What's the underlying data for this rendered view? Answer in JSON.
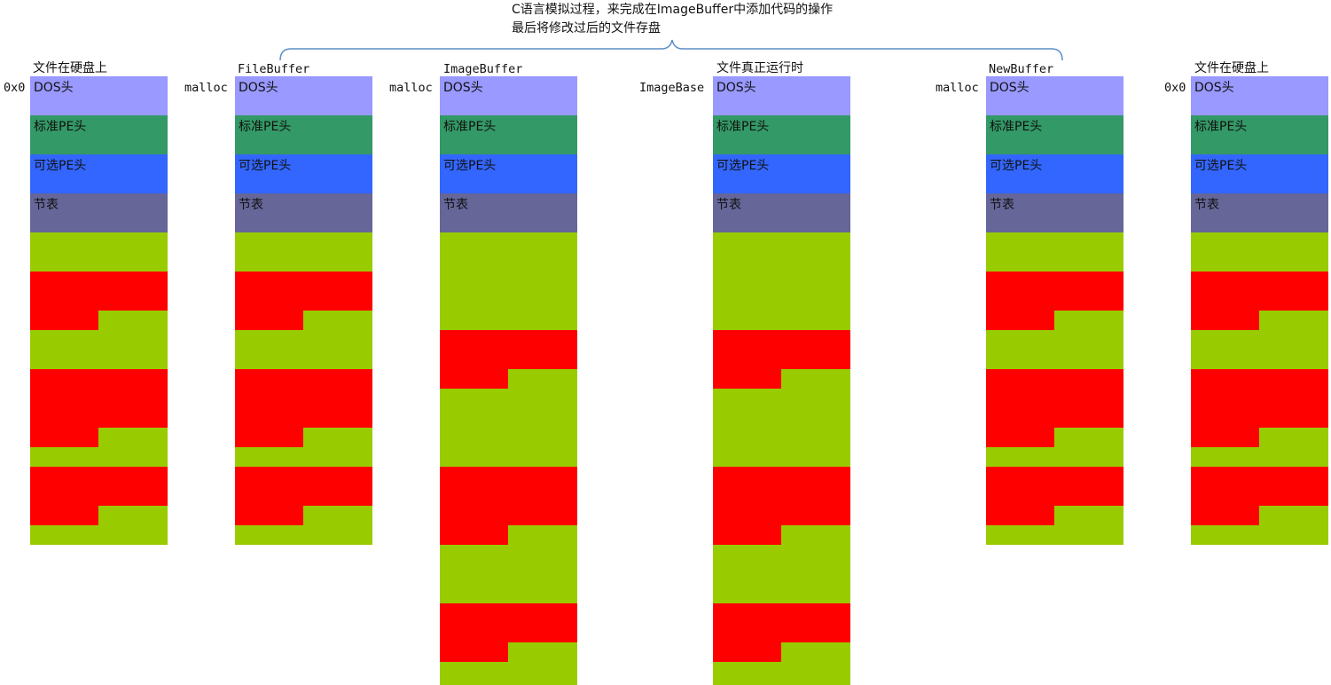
{
  "note": {
    "line1": "C语言模拟过程，来完成在ImageBuffer中添加代码的操作",
    "line2": "最后将修改过后的文件存盘"
  },
  "header_labels": [
    "DOS头",
    "标准PE头",
    "可选PE头",
    "节表"
  ],
  "columns": [
    {
      "title": "文件在硬盘上",
      "left_label": "0x0"
    },
    {
      "title": "FileBuffer",
      "left_label": "malloc"
    },
    {
      "title": "ImageBuffer",
      "left_label": "malloc"
    },
    {
      "title": "文件真正运行时",
      "left_label": "ImageBase"
    },
    {
      "title": "NewBuffer",
      "left_label": "malloc"
    },
    {
      "title": "文件在硬盘上",
      "left_label": "0x0"
    }
  ],
  "colors": {
    "dos": "#9999ff",
    "standard_pe": "#339966",
    "optional_pe": "#3366ff",
    "section_table": "#666699",
    "padding": "#99cc00",
    "section": "#ff0000",
    "brace": "#5b8fc7"
  }
}
